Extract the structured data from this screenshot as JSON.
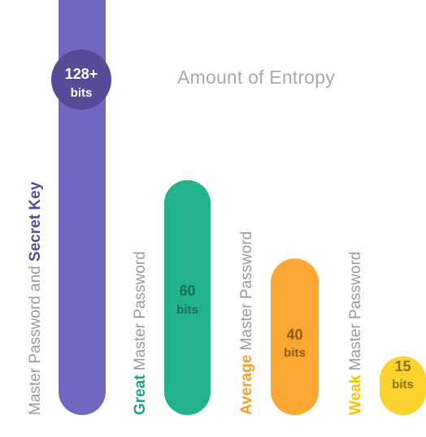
{
  "chart_data": {
    "type": "bar",
    "title": "Amount of Entropy",
    "xlabel": "",
    "ylabel": "",
    "ylim": [
      0,
      128
    ],
    "unit": "bits",
    "bars": [
      {
        "strong": "Secret Key",
        "prefix": "Master Password and ",
        "suffix": "",
        "value": 128,
        "value_label": "128+",
        "unit": "bits",
        "color": "#7166c0",
        "text_color": "#ffffff",
        "badge_color": "#574b98",
        "strong_color": "#574b98"
      },
      {
        "strong": "Great",
        "prefix": "",
        "suffix": " Master Password",
        "value": 60,
        "value_label": "60",
        "unit": "bits",
        "color": "#22b38e",
        "text_color": "#1f6e5b",
        "strong_color": "#1fa47f"
      },
      {
        "strong": "Average",
        "prefix": "",
        "suffix": " Master Password",
        "value": 40,
        "value_label": "40",
        "unit": "bits",
        "color": "#fba832",
        "text_color": "#8a5a12",
        "strong_color": "#f7a02b"
      },
      {
        "strong": "Weak",
        "prefix": "",
        "suffix": " Master Password",
        "value": 15,
        "value_label": "15",
        "unit": "bits",
        "color": "#fcd22f",
        "text_color": "#8a7210",
        "strong_color": "#f5c500"
      }
    ]
  }
}
